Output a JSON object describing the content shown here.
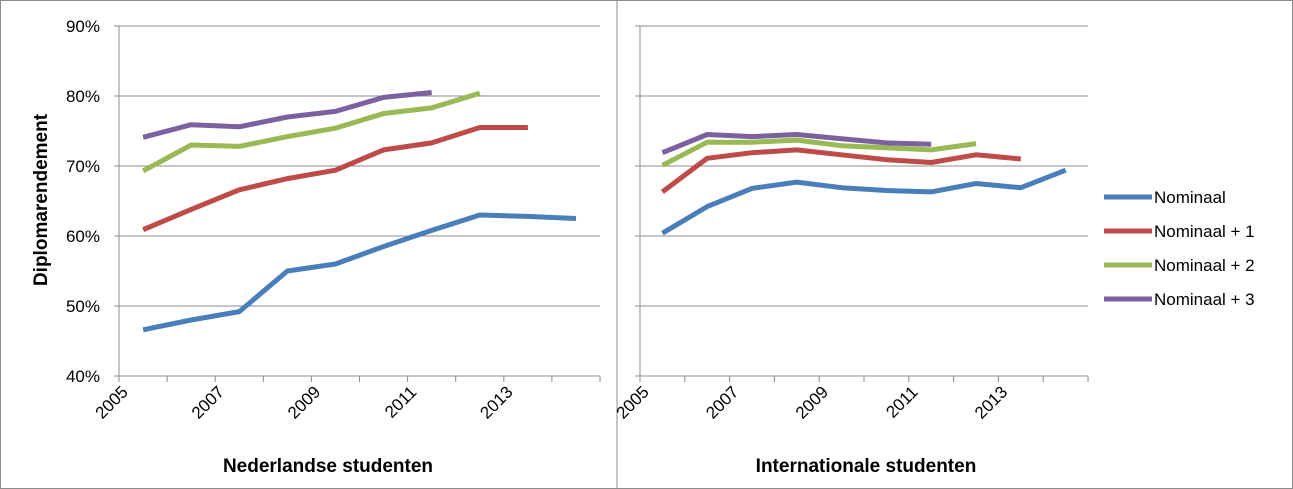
{
  "chart_data": [
    {
      "type": "line",
      "xlabel": "Nederlandse studenten",
      "ylabel": "Diplomarendement",
      "ylim": [
        40,
        90
      ],
      "y_ticks": [
        "40%",
        "50%",
        "60%",
        "70%",
        "80%",
        "90%"
      ],
      "x_tick_labels": [
        "2005",
        "2007",
        "2009",
        "2011",
        "2013"
      ],
      "x": [
        2005,
        2006,
        2007,
        2008,
        2009,
        2010,
        2011,
        2012,
        2013,
        2014
      ],
      "grid": "horizontal",
      "series": [
        {
          "name": "Nominaal",
          "color": "#4a7ebb",
          "values": [
            46.6,
            48,
            49.2,
            55,
            56,
            58.5,
            60.8,
            63,
            62.8,
            62.5
          ]
        },
        {
          "name": "Nominaal + 1",
          "color": "#be4b48",
          "values": [
            60.9,
            63.8,
            66.6,
            68.2,
            69.4,
            72.3,
            73.3,
            75.5,
            75.5,
            null
          ]
        },
        {
          "name": "Nominaal + 2",
          "color": "#98b954",
          "values": [
            69.3,
            73,
            72.8,
            74.2,
            75.4,
            77.5,
            78.3,
            80.4,
            null,
            null
          ]
        },
        {
          "name": "Nominaal + 3",
          "color": "#7d60a0",
          "values": [
            74.1,
            75.9,
            75.6,
            77,
            77.8,
            79.8,
            80.5,
            null,
            null,
            null
          ]
        }
      ]
    },
    {
      "type": "line",
      "xlabel": "Internationale studenten",
      "ylim": [
        40,
        90
      ],
      "x_tick_labels": [
        "2005",
        "2007",
        "2009",
        "2011",
        "2013"
      ],
      "x": [
        2005,
        2006,
        2007,
        2008,
        2009,
        2010,
        2011,
        2012,
        2013,
        2014
      ],
      "grid": "horizontal",
      "series": [
        {
          "name": "Nominaal",
          "color": "#4a7ebb",
          "values": [
            60.4,
            64.2,
            66.8,
            67.7,
            66.9,
            66.5,
            66.3,
            67.5,
            66.9,
            69.4
          ]
        },
        {
          "name": "Nominaal + 1",
          "color": "#be4b48",
          "values": [
            66.3,
            71.1,
            71.9,
            72.3,
            71.6,
            70.9,
            70.5,
            71.6,
            71,
            null
          ]
        },
        {
          "name": "Nominaal + 2",
          "color": "#98b954",
          "values": [
            70.1,
            73.4,
            73.4,
            73.7,
            72.9,
            72.6,
            72.3,
            73.2,
            null,
            null
          ]
        },
        {
          "name": "Nominaal + 3",
          "color": "#7d60a0",
          "values": [
            71.9,
            74.5,
            74.2,
            74.5,
            73.9,
            73.3,
            73.1,
            null,
            null,
            null
          ]
        }
      ]
    }
  ],
  "legend": {
    "position": "right",
    "entries": [
      "Nominaal",
      "Nominaal + 1",
      "Nominaal + 2",
      "Nominaal + 3"
    ]
  }
}
